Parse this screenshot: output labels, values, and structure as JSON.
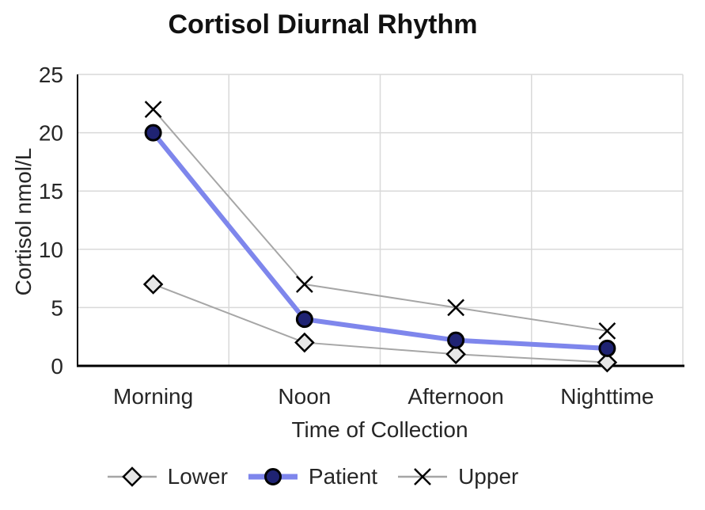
{
  "chart_data": {
    "type": "line",
    "title": "Cortisol Diurnal Rhythm",
    "xlabel": "Time of Collection",
    "ylabel": "Cortisol nmol/L",
    "categories": [
      "Morning",
      "Noon",
      "Afternoon",
      "Nighttime"
    ],
    "series": [
      {
        "name": "Lower",
        "values": [
          7,
          2,
          1,
          0.3
        ],
        "line_color": "#a6a6a6",
        "line_width": 2,
        "marker": "diamond",
        "marker_fill": "#e6e6e6",
        "marker_stroke": "#000000"
      },
      {
        "name": "Patient",
        "values": [
          20,
          4,
          2.2,
          1.5
        ],
        "line_color": "#7e86ec",
        "line_width": 6,
        "marker": "circle",
        "marker_fill": "#1f2373",
        "marker_stroke": "#000000"
      },
      {
        "name": "Upper",
        "values": [
          22,
          7,
          5,
          3
        ],
        "line_color": "#a6a6a6",
        "line_width": 2,
        "marker": "x",
        "marker_fill": "none",
        "marker_stroke": "#000000"
      }
    ],
    "ylim": [
      0,
      25
    ],
    "yticks": [
      0,
      5,
      10,
      15,
      20,
      25
    ],
    "grid": true,
    "legend_position": "bottom",
    "colors": {
      "background": "#ffffff",
      "gridline": "#d9d9d9",
      "axis_line": "#000000",
      "tick_label": "#262626",
      "title": "#111111"
    }
  }
}
